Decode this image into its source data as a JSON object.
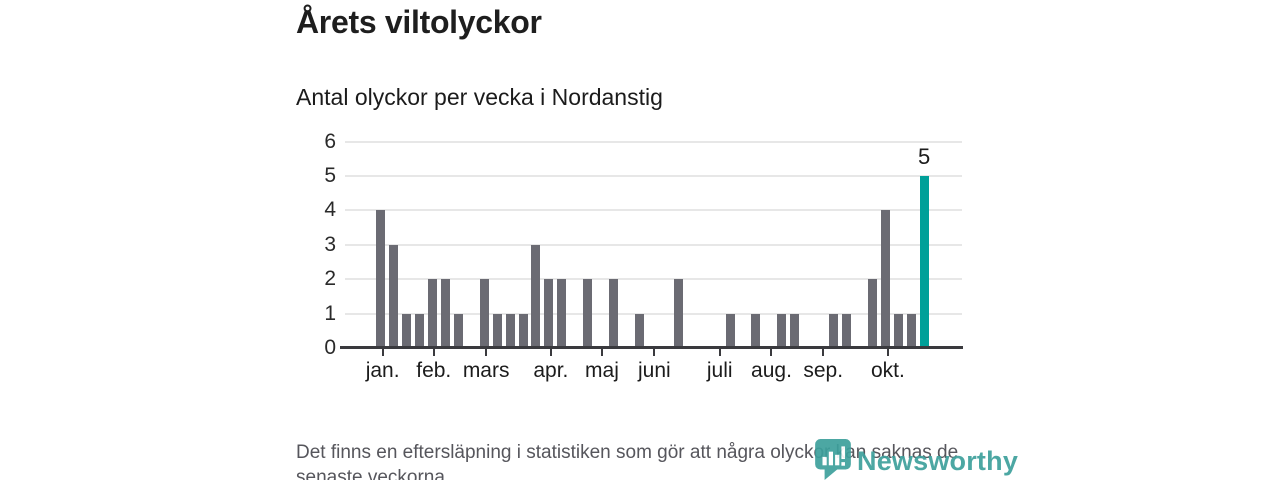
{
  "header": {
    "title": "Årets viltolyckor",
    "subtitle": "Antal olyckor per vecka i Nordanstig"
  },
  "chart_data": {
    "type": "bar",
    "title": "Årets viltolyckor",
    "subtitle": "Antal olyckor per vecka i Nordanstig",
    "x_unit": "vecka",
    "values": [
      4,
      3,
      1,
      1,
      2,
      2,
      1,
      0,
      2,
      1,
      1,
      1,
      3,
      2,
      2,
      0,
      2,
      0,
      2,
      0,
      1,
      0,
      0,
      2,
      0,
      0,
      0,
      1,
      0,
      1,
      0,
      1,
      1,
      0,
      0,
      1,
      1,
      0,
      2,
      4,
      1,
      1,
      5
    ],
    "highlight_index": 42,
    "highlight_value_label": "5",
    "ylim": [
      0,
      6
    ],
    "yticks": [
      0,
      1,
      2,
      3,
      4,
      5,
      6
    ],
    "grid": true,
    "legend": "none",
    "months": [
      {
        "label": "jan.",
        "week": 0.15
      },
      {
        "label": "feb.",
        "week": 4.1
      },
      {
        "label": "mars",
        "week": 8.15
      },
      {
        "label": "apr.",
        "week": 13.15
      },
      {
        "label": "maj",
        "week": 17.1
      },
      {
        "label": "juni",
        "week": 21.15
      },
      {
        "label": "juli",
        "week": 26.2
      },
      {
        "label": "aug.",
        "week": 30.2
      },
      {
        "label": "sep.",
        "week": 34.2
      },
      {
        "label": "okt.",
        "week": 39.2
      }
    ]
  },
  "footer": {
    "line1": "Det finns en eftersläpning i statistiken som gör att några olyckor kan saknas de",
    "line2": "senaste veckorna."
  },
  "branding": {
    "name": "Newsworthy",
    "icon": "newsworthy-pin-barchart-icon"
  },
  "colors": {
    "bar": "#6b6b73",
    "accent": "#00a099",
    "grid": "#e7e7e7",
    "axis": "#3a3a3e",
    "brand": "#3da09c"
  }
}
